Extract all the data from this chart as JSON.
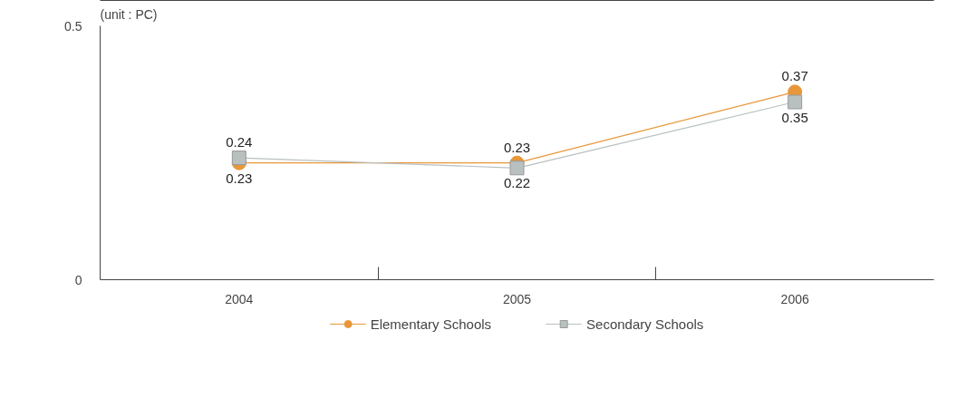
{
  "chart_data": {
    "type": "line",
    "ylabel": "(unit : PC)",
    "categories": [
      "2004",
      "2005",
      "2006"
    ],
    "series": [
      {
        "name": "Elementary Schools",
        "color": "#e8973a",
        "marker": "circle",
        "values": [
          0.23,
          0.23,
          0.37
        ]
      },
      {
        "name": "Secondary Schools",
        "color": "#b8c0c0",
        "marker": "square",
        "values": [
          0.24,
          0.22,
          0.35
        ]
      }
    ],
    "ylim": [
      0,
      0.5
    ],
    "yticks": [
      0,
      0.5
    ],
    "grid": false,
    "legend": "bottom",
    "data_labels": true,
    "line_style": "solid"
  }
}
